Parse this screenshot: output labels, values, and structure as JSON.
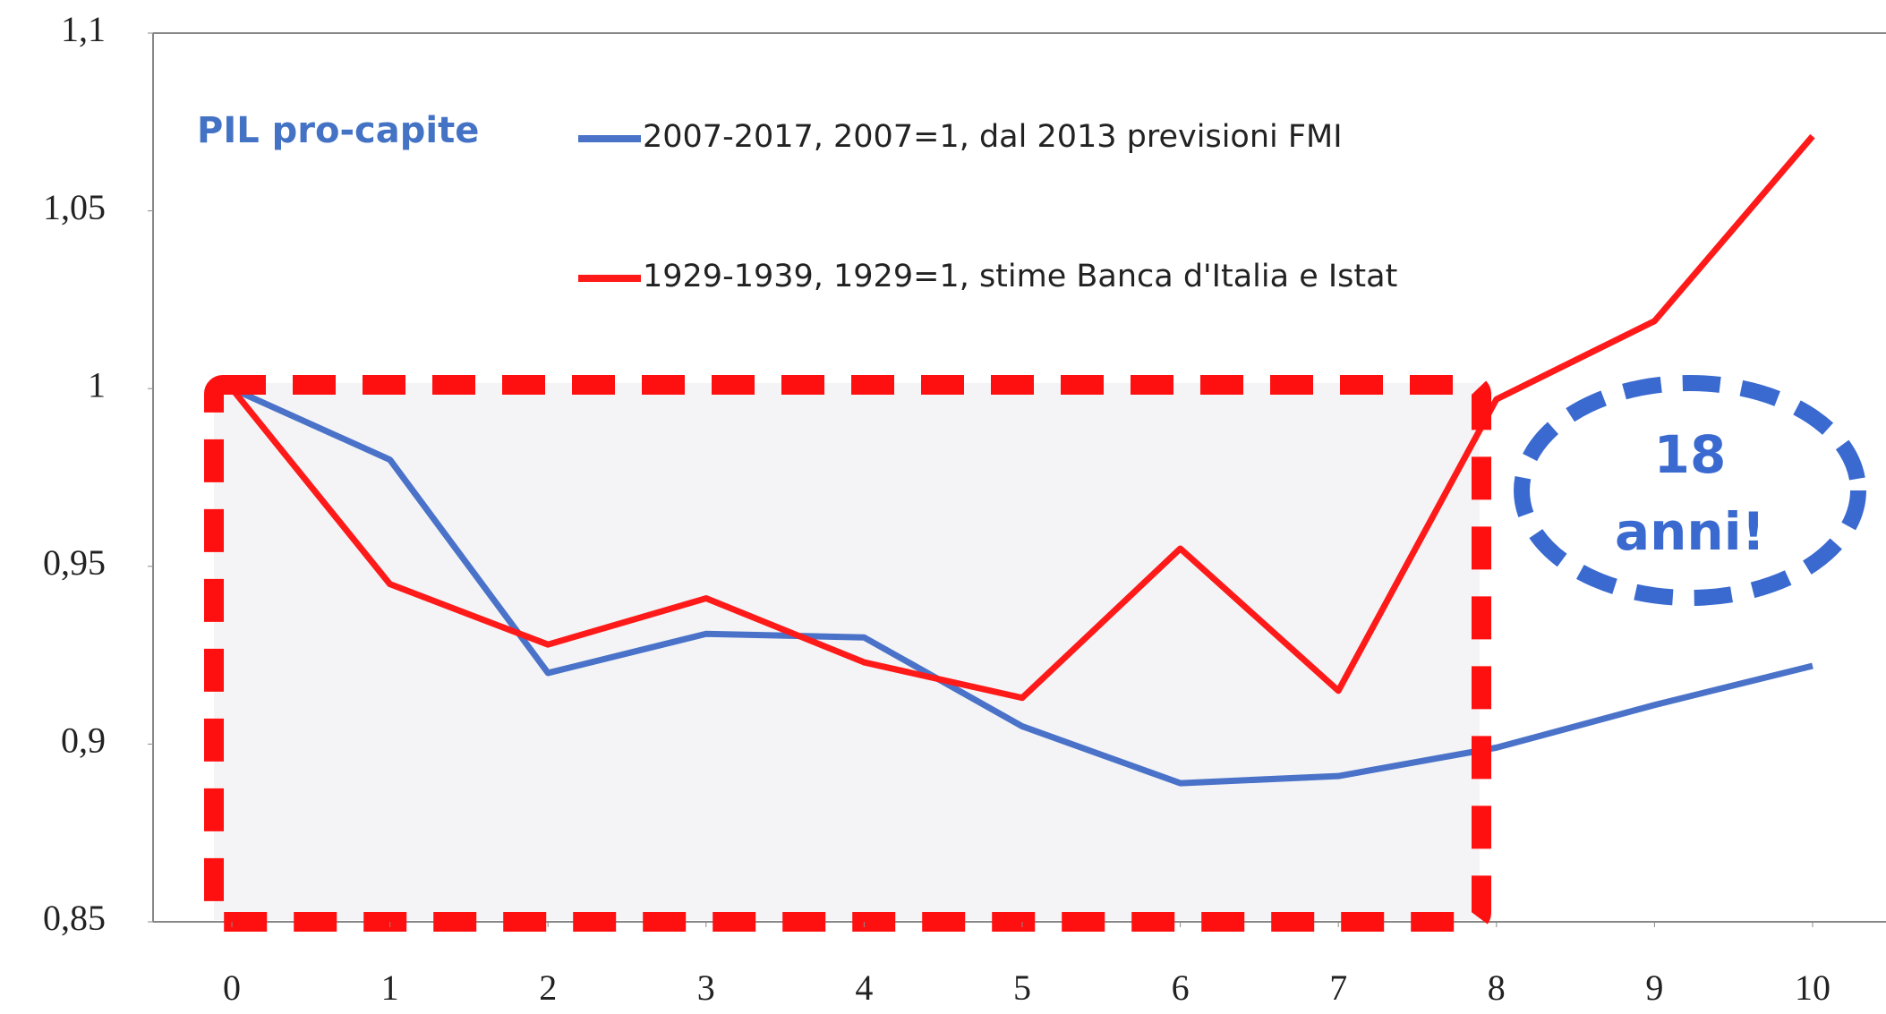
{
  "chart_data": {
    "type": "line",
    "annotations": [
      "PIL pro-capite",
      "18",
      "anni!"
    ],
    "x": [
      0,
      1,
      2,
      3,
      4,
      5,
      6,
      7,
      8,
      9,
      10
    ],
    "series": [
      {
        "name": "2007-2017, 2007=1, dal 2013 previsioni FMI",
        "color": "#4a72c9",
        "values": [
          1.0,
          0.98,
          0.92,
          0.931,
          0.93,
          0.905,
          0.889,
          0.891,
          0.899,
          0.911,
          0.922
        ]
      },
      {
        "name": "1929-1939, 1929=1, stime Banca d'Italia e Istat",
        "color": "#ff1a1a",
        "values": [
          1.0,
          0.945,
          0.928,
          0.941,
          0.923,
          0.913,
          0.955,
          0.915,
          0.997,
          1.019,
          1.071
        ]
      }
    ],
    "xlim": [
      0,
      10
    ],
    "xticks": [
      0,
      1,
      2,
      3,
      4,
      5,
      6,
      7,
      8,
      9,
      10
    ],
    "ylim": [
      0.85,
      1.1
    ],
    "yticks": [
      {
        "value": 0.85,
        "label": "0,85"
      },
      {
        "value": 0.9,
        "label": "0,9"
      },
      {
        "value": 0.95,
        "label": "0,95"
      },
      1,
      {
        "value": 1.05,
        "label": "1,05"
      },
      {
        "value": 1.1,
        "label": "1,1"
      }
    ]
  }
}
